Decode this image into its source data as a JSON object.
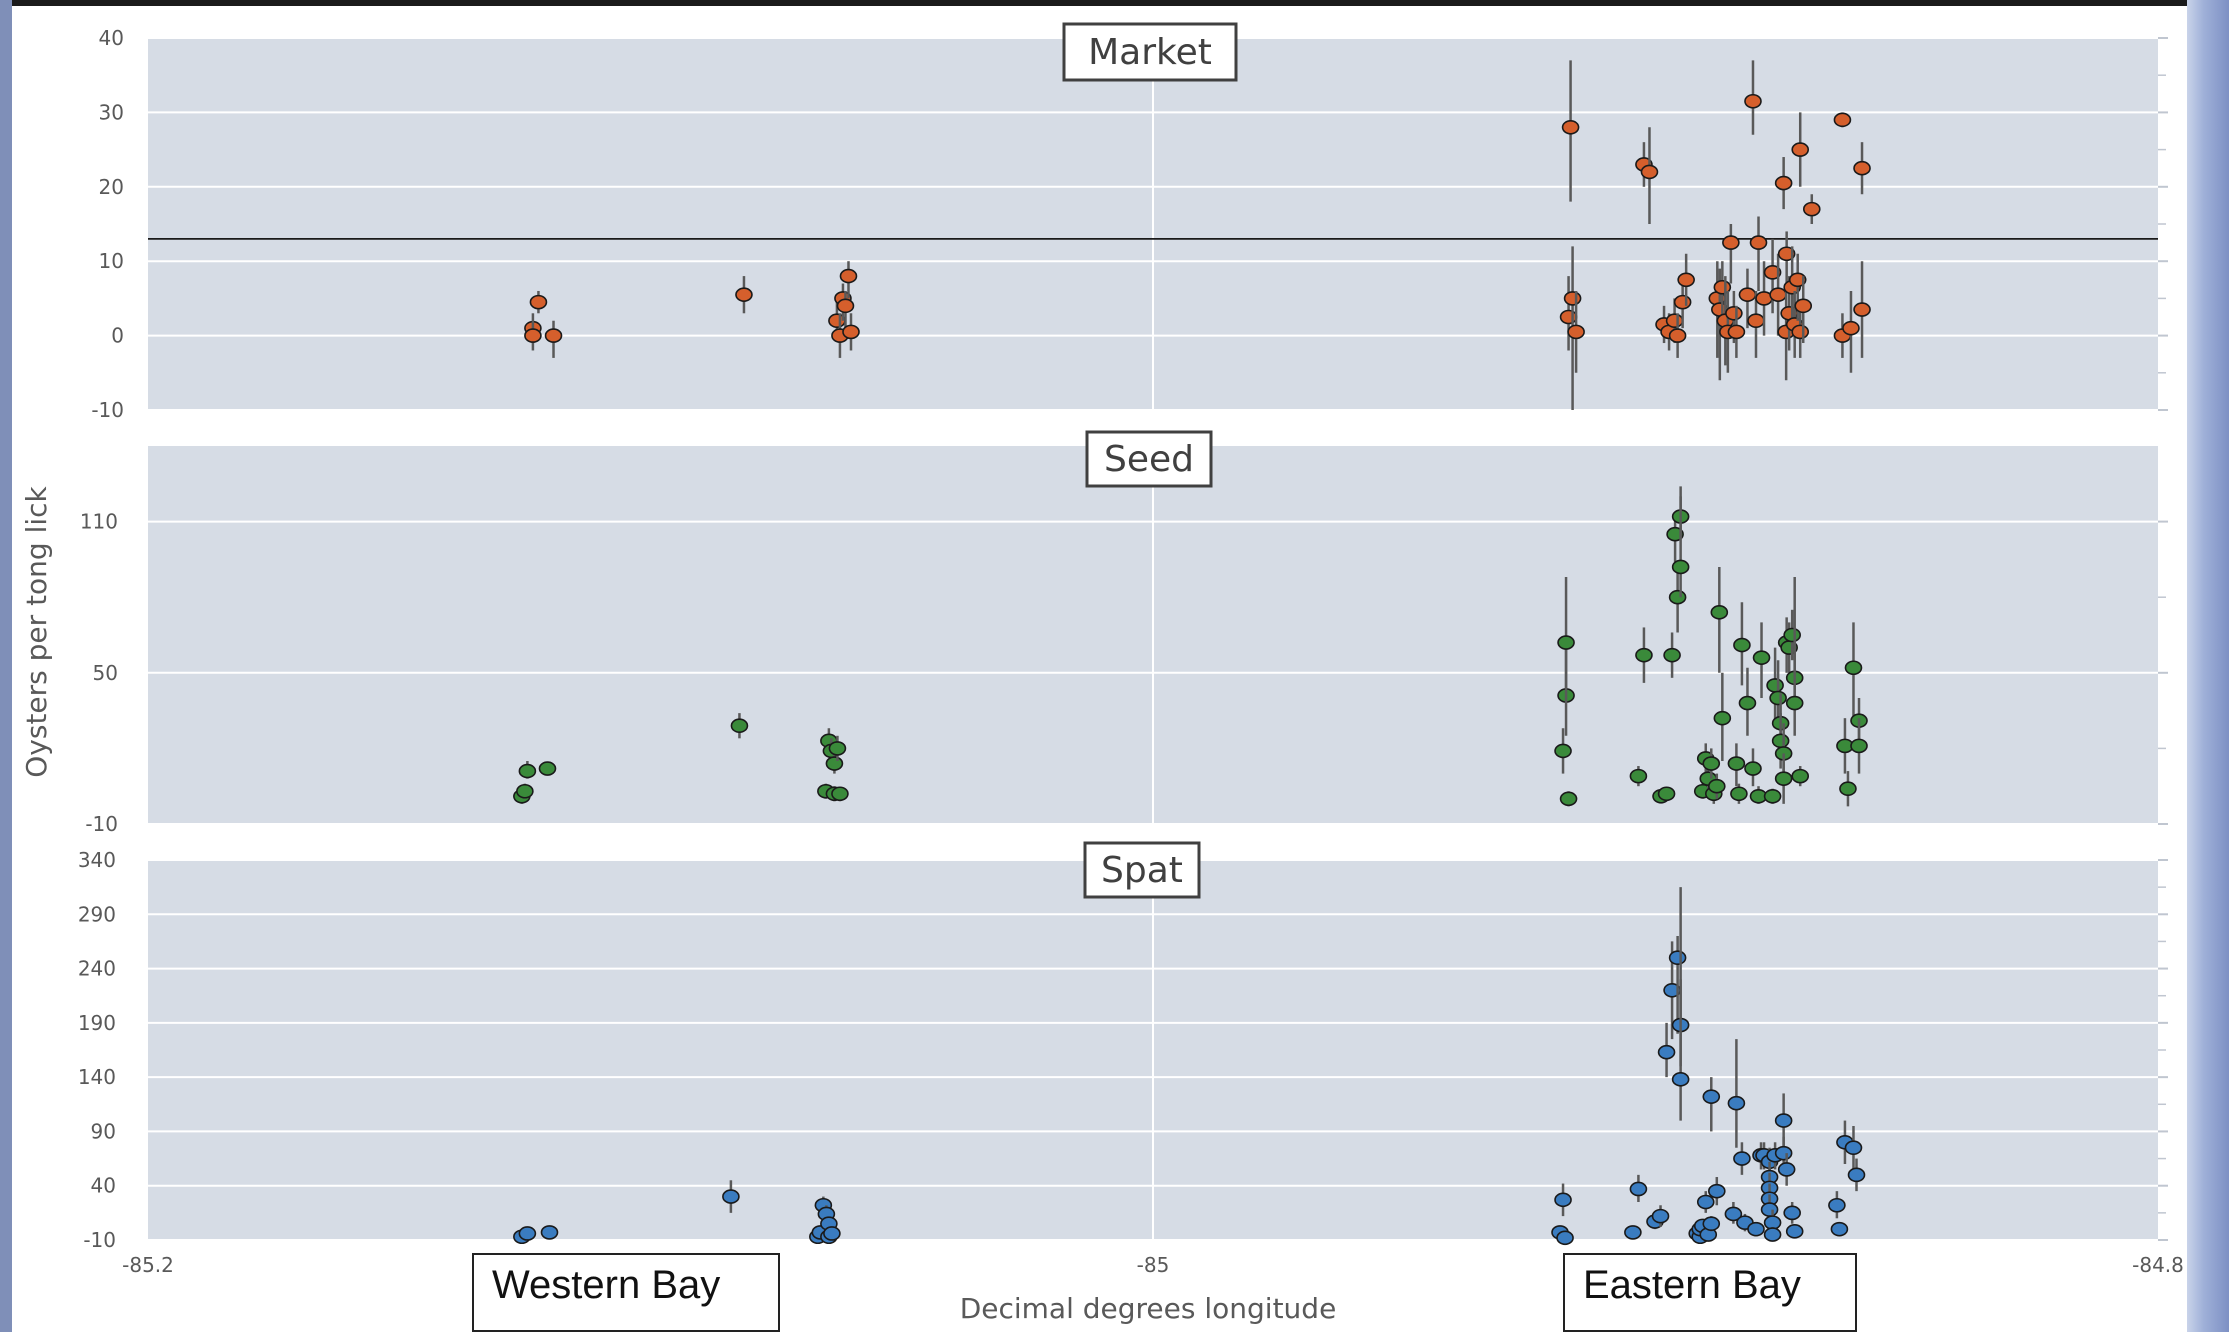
{
  "ylabel": "Oysters per tong lick",
  "xlabel": "Decimal degrees longitude",
  "x_ticks": [
    "-85.2",
    "-85",
    "-84.8"
  ],
  "bay_labels": {
    "west": "Western Bay",
    "east": "Eastern Bay"
  },
  "colors": {
    "plot_bg": "#d6dce5",
    "grid": "#ffffff",
    "whisker": "#595959"
  },
  "chart_data": [
    {
      "type": "scatter",
      "title": "Market",
      "xlim": [
        -85.2,
        -84.8
      ],
      "ylim": [
        -10,
        40
      ],
      "yticks": [
        -10,
        0,
        10,
        20,
        30,
        40
      ],
      "hline": 13,
      "marker_color": "#d55f2c",
      "points": [
        {
          "x": -85.1234,
          "y": 1,
          "lo": -1,
          "hi": 3
        },
        {
          "x": -85.1234,
          "y": 0,
          "lo": -2,
          "hi": 2
        },
        {
          "x": -85.1223,
          "y": 4.5,
          "lo": 3,
          "hi": 6
        },
        {
          "x": -85.1193,
          "y": 0,
          "lo": -3,
          "hi": 2
        },
        {
          "x": -85.0814,
          "y": 5.5,
          "lo": 3,
          "hi": 8
        },
        {
          "x": -85.0629,
          "y": 2,
          "lo": 0,
          "hi": 5
        },
        {
          "x": -85.0623,
          "y": 0,
          "lo": -3,
          "hi": 3
        },
        {
          "x": -85.0617,
          "y": 5,
          "lo": 2,
          "hi": 7
        },
        {
          "x": -85.0612,
          "y": 4,
          "lo": 1,
          "hi": 6
        },
        {
          "x": -85.0606,
          "y": 8,
          "lo": 5,
          "hi": 10
        },
        {
          "x": -85.0601,
          "y": 0.5,
          "lo": -2,
          "hi": 3
        },
        {
          "x": -84.9169,
          "y": 28,
          "lo": 18,
          "hi": 37
        },
        {
          "x": -84.9173,
          "y": 2.5,
          "lo": -2,
          "hi": 8
        },
        {
          "x": -84.9165,
          "y": 5,
          "lo": -10,
          "hi": 12
        },
        {
          "x": -84.9158,
          "y": 0.5,
          "lo": -5,
          "hi": 6
        },
        {
          "x": -84.9023,
          "y": 23,
          "lo": 20,
          "hi": 26
        },
        {
          "x": -84.9012,
          "y": 22,
          "lo": 15,
          "hi": 28
        },
        {
          "x": -84.8983,
          "y": 1.5,
          "lo": -1,
          "hi": 4
        },
        {
          "x": -84.8973,
          "y": 0.5,
          "lo": -2,
          "hi": 3
        },
        {
          "x": -84.8962,
          "y": 2,
          "lo": -1,
          "hi": 5
        },
        {
          "x": -84.8956,
          "y": 0,
          "lo": -3,
          "hi": 3
        },
        {
          "x": -84.8946,
          "y": 4.5,
          "lo": 1,
          "hi": 8
        },
        {
          "x": -84.8939,
          "y": 7.5,
          "lo": 4,
          "hi": 11
        },
        {
          "x": -84.8877,
          "y": 5,
          "lo": -3,
          "hi": 10
        },
        {
          "x": -84.8872,
          "y": 3.5,
          "lo": -6,
          "hi": 9
        },
        {
          "x": -84.8867,
          "y": 6.5,
          "lo": 2,
          "hi": 10
        },
        {
          "x": -84.8861,
          "y": 2,
          "lo": -4,
          "hi": 8
        },
        {
          "x": -84.8856,
          "y": 0.5,
          "lo": -5,
          "hi": 6
        },
        {
          "x": -84.885,
          "y": 12.5,
          "lo": 7,
          "hi": 15
        },
        {
          "x": -84.8844,
          "y": 3,
          "lo": -1,
          "hi": 6
        },
        {
          "x": -84.8839,
          "y": 0.5,
          "lo": -3,
          "hi": 4
        },
        {
          "x": -84.8817,
          "y": 5.5,
          "lo": 1,
          "hi": 9
        },
        {
          "x": -84.8806,
          "y": 31.5,
          "lo": 27,
          "hi": 37
        },
        {
          "x": -84.88,
          "y": 2,
          "lo": -3,
          "hi": 6
        },
        {
          "x": -84.8795,
          "y": 12.5,
          "lo": 6,
          "hi": 16
        },
        {
          "x": -84.8784,
          "y": 5,
          "lo": 0,
          "hi": 10
        },
        {
          "x": -84.8767,
          "y": 8.5,
          "lo": 3,
          "hi": 13
        },
        {
          "x": -84.8756,
          "y": 5.5,
          "lo": 0,
          "hi": 11
        },
        {
          "x": -84.8745,
          "y": 20.5,
          "lo": 17,
          "hi": 24
        },
        {
          "x": -84.874,
          "y": 0.5,
          "lo": -6,
          "hi": 7
        },
        {
          "x": -84.8734,
          "y": 3,
          "lo": -2,
          "hi": 8
        },
        {
          "x": -84.8739,
          "y": 11,
          "lo": 6,
          "hi": 14
        },
        {
          "x": -84.8728,
          "y": 6.5,
          "lo": 1,
          "hi": 12
        },
        {
          "x": -84.8723,
          "y": 1.5,
          "lo": -3,
          "hi": 6
        },
        {
          "x": -84.8717,
          "y": 7.5,
          "lo": 2,
          "hi": 11
        },
        {
          "x": -84.8712,
          "y": 25,
          "lo": 20,
          "hi": 30
        },
        {
          "x": -84.8712,
          "y": 0.5,
          "lo": -3,
          "hi": 4
        },
        {
          "x": -84.8706,
          "y": 4,
          "lo": -1,
          "hi": 8
        },
        {
          "x": -84.8689,
          "y": 17,
          "lo": 15,
          "hi": 19
        },
        {
          "x": -84.8628,
          "y": 29,
          "lo": 28,
          "hi": 30
        },
        {
          "x": -84.8628,
          "y": 0,
          "lo": -3,
          "hi": 3
        },
        {
          "x": -84.8611,
          "y": 1,
          "lo": -5,
          "hi": 6
        },
        {
          "x": -84.8589,
          "y": 22.5,
          "lo": 19,
          "hi": 26
        },
        {
          "x": -84.8589,
          "y": 3.5,
          "lo": -3,
          "hi": 10
        }
      ]
    },
    {
      "type": "scatter",
      "title": "Seed",
      "xlim": [
        -85.2,
        -84.8
      ],
      "ylim": [
        -10,
        140
      ],
      "yticks": [
        -10,
        50,
        110
      ],
      "marker_color": "#3a8a3a",
      "points": [
        {
          "x": -85.1256,
          "y": 1,
          "lo": -2,
          "hi": 4
        },
        {
          "x": -85.125,
          "y": 3,
          "lo": 0,
          "hi": 6
        },
        {
          "x": -85.1245,
          "y": 11,
          "lo": 8,
          "hi": 15
        },
        {
          "x": -85.1205,
          "y": 12,
          "lo": 10,
          "hi": 14
        },
        {
          "x": -85.0823,
          "y": 29,
          "lo": 24,
          "hi": 34
        },
        {
          "x": -85.0651,
          "y": 3,
          "lo": 0,
          "hi": 6
        },
        {
          "x": -85.0645,
          "y": 23,
          "lo": 18,
          "hi": 28
        },
        {
          "x": -85.064,
          "y": 19,
          "lo": 15,
          "hi": 24
        },
        {
          "x": -85.0634,
          "y": 14,
          "lo": 10,
          "hi": 18
        },
        {
          "x": -85.0634,
          "y": 2,
          "lo": -1,
          "hi": 5
        },
        {
          "x": -85.0628,
          "y": 20,
          "lo": 15,
          "hi": 25
        },
        {
          "x": -85.0623,
          "y": 2,
          "lo": -1,
          "hi": 4
        },
        {
          "x": -84.9184,
          "y": 19,
          "lo": 10,
          "hi": 28
        },
        {
          "x": -84.9178,
          "y": 41,
          "lo": 25,
          "hi": 60
        },
        {
          "x": -84.9178,
          "y": 62,
          "lo": 38,
          "hi": 88
        },
        {
          "x": -84.9173,
          "y": 0,
          "lo": -3,
          "hi": 3
        },
        {
          "x": -84.9034,
          "y": 9,
          "lo": 5,
          "hi": 13
        },
        {
          "x": -84.9023,
          "y": 57,
          "lo": 46,
          "hi": 68
        },
        {
          "x": -84.8989,
          "y": 1,
          "lo": -1,
          "hi": 3
        },
        {
          "x": -84.8978,
          "y": 2,
          "lo": 0,
          "hi": 4
        },
        {
          "x": -84.8967,
          "y": 57,
          "lo": 48,
          "hi": 66
        },
        {
          "x": -84.8961,
          "y": 105,
          "lo": 94,
          "hi": 113
        },
        {
          "x": -84.8956,
          "y": 80,
          "lo": 66,
          "hi": 94
        },
        {
          "x": -84.895,
          "y": 112,
          "lo": 103,
          "hi": 120
        },
        {
          "x": -84.895,
          "y": 92,
          "lo": 80,
          "hi": 124
        },
        {
          "x": -84.8906,
          "y": 3,
          "lo": 0,
          "hi": 7
        },
        {
          "x": -84.89,
          "y": 16,
          "lo": 10,
          "hi": 22
        },
        {
          "x": -84.8895,
          "y": 8,
          "lo": 3,
          "hi": 14
        },
        {
          "x": -84.8889,
          "y": 14,
          "lo": 8,
          "hi": 20
        },
        {
          "x": -84.8884,
          "y": 2,
          "lo": -2,
          "hi": 6
        },
        {
          "x": -84.8878,
          "y": 5,
          "lo": 0,
          "hi": 10
        },
        {
          "x": -84.8873,
          "y": 74,
          "lo": 50,
          "hi": 92
        },
        {
          "x": -84.8867,
          "y": 32,
          "lo": 15,
          "hi": 50
        },
        {
          "x": -84.8839,
          "y": 14,
          "lo": 5,
          "hi": 22
        },
        {
          "x": -84.8834,
          "y": 2,
          "lo": -2,
          "hi": 6
        },
        {
          "x": -84.8828,
          "y": 61,
          "lo": 45,
          "hi": 78
        },
        {
          "x": -84.8817,
          "y": 38,
          "lo": 25,
          "hi": 52
        },
        {
          "x": -84.8806,
          "y": 12,
          "lo": 5,
          "hi": 20
        },
        {
          "x": -84.8795,
          "y": 1,
          "lo": -2,
          "hi": 5
        },
        {
          "x": -84.8789,
          "y": 56,
          "lo": 40,
          "hi": 70
        },
        {
          "x": -84.8767,
          "y": 1,
          "lo": -2,
          "hi": 4
        },
        {
          "x": -84.8762,
          "y": 45,
          "lo": 30,
          "hi": 60
        },
        {
          "x": -84.8756,
          "y": 40,
          "lo": 28,
          "hi": 55
        },
        {
          "x": -84.8751,
          "y": 30,
          "lo": 18,
          "hi": 42
        },
        {
          "x": -84.8751,
          "y": 23,
          "lo": 12,
          "hi": 34
        },
        {
          "x": -84.8745,
          "y": 18,
          "lo": 5,
          "hi": 30
        },
        {
          "x": -84.8745,
          "y": 8,
          "lo": -2,
          "hi": 18
        },
        {
          "x": -84.8739,
          "y": 62,
          "lo": 50,
          "hi": 72
        },
        {
          "x": -84.8734,
          "y": 60,
          "lo": 50,
          "hi": 70
        },
        {
          "x": -84.8728,
          "y": 65,
          "lo": 55,
          "hi": 75
        },
        {
          "x": -84.8723,
          "y": 48,
          "lo": 35,
          "hi": 88
        },
        {
          "x": -84.8723,
          "y": 38,
          "lo": 25,
          "hi": 60
        },
        {
          "x": -84.8712,
          "y": 9,
          "lo": 5,
          "hi": 13
        },
        {
          "x": -84.8623,
          "y": 21,
          "lo": 10,
          "hi": 32
        },
        {
          "x": -84.8617,
          "y": 4,
          "lo": -3,
          "hi": 11
        },
        {
          "x": -84.8606,
          "y": 52,
          "lo": 30,
          "hi": 70
        },
        {
          "x": -84.8595,
          "y": 31,
          "lo": 22,
          "hi": 40
        },
        {
          "x": -84.8595,
          "y": 21,
          "lo": 10,
          "hi": 32
        }
      ]
    },
    {
      "type": "scatter",
      "title": "Spat",
      "xlim": [
        -85.2,
        -84.8
      ],
      "ylim": [
        -10,
        340
      ],
      "yticks": [
        -10,
        40,
        90,
        140,
        190,
        240,
        290,
        340
      ],
      "marker_color": "#3a7cc0",
      "points": [
        {
          "x": -85.1256,
          "y": -7,
          "lo": -10,
          "hi": -3
        },
        {
          "x": -85.1245,
          "y": -4,
          "lo": -8,
          "hi": 0
        },
        {
          "x": -85.1201,
          "y": -3,
          "lo": -6,
          "hi": 0
        },
        {
          "x": -85.084,
          "y": 30,
          "lo": 15,
          "hi": 45
        },
        {
          "x": -85.0667,
          "y": -7,
          "lo": -10,
          "hi": -3
        },
        {
          "x": -85.0662,
          "y": -3,
          "lo": -6,
          "hi": 0
        },
        {
          "x": -85.0656,
          "y": 22,
          "lo": 15,
          "hi": 30
        },
        {
          "x": -85.065,
          "y": 14,
          "lo": 6,
          "hi": 22
        },
        {
          "x": -85.0645,
          "y": 5,
          "lo": -1,
          "hi": 10
        },
        {
          "x": -85.0645,
          "y": -7,
          "lo": -10,
          "hi": -3
        },
        {
          "x": -85.0639,
          "y": -4,
          "lo": -8,
          "hi": 0
        },
        {
          "x": -84.919,
          "y": -3,
          "lo": -8,
          "hi": 2
        },
        {
          "x": -84.918,
          "y": -8,
          "lo": -10,
          "hi": -5
        },
        {
          "x": -84.9184,
          "y": 27,
          "lo": 12,
          "hi": 42
        },
        {
          "x": -84.9045,
          "y": -3,
          "lo": -7,
          "hi": 1
        },
        {
          "x": -84.9034,
          "y": 37,
          "lo": 25,
          "hi": 50
        },
        {
          "x": -84.9001,
          "y": 7,
          "lo": 0,
          "hi": 14
        },
        {
          "x": -84.899,
          "y": 12,
          "lo": 2,
          "hi": 22
        },
        {
          "x": -84.8978,
          "y": 163,
          "lo": 140,
          "hi": 190
        },
        {
          "x": -84.8967,
          "y": 220,
          "lo": 175,
          "hi": 265
        },
        {
          "x": -84.8956,
          "y": 250,
          "lo": 180,
          "hi": 270
        },
        {
          "x": -84.895,
          "y": 188,
          "lo": 150,
          "hi": 230
        },
        {
          "x": -84.895,
          "y": 138,
          "lo": 100,
          "hi": 315
        },
        {
          "x": -84.8917,
          "y": -4,
          "lo": -8,
          "hi": 0
        },
        {
          "x": -84.8911,
          "y": -7,
          "lo": -10,
          "hi": -3
        },
        {
          "x": -84.8911,
          "y": 0,
          "lo": -4,
          "hi": 4
        },
        {
          "x": -84.8906,
          "y": 3,
          "lo": -2,
          "hi": 8
        },
        {
          "x": -84.89,
          "y": 25,
          "lo": 15,
          "hi": 35
        },
        {
          "x": -84.8895,
          "y": -5,
          "lo": -9,
          "hi": -1
        },
        {
          "x": -84.8889,
          "y": 5,
          "lo": -2,
          "hi": 12
        },
        {
          "x": -84.8889,
          "y": 122,
          "lo": 90,
          "hi": 140
        },
        {
          "x": -84.8878,
          "y": 35,
          "lo": 22,
          "hi": 48
        },
        {
          "x": -84.8845,
          "y": 14,
          "lo": 5,
          "hi": 25
        },
        {
          "x": -84.8839,
          "y": 116,
          "lo": 75,
          "hi": 175
        },
        {
          "x": -84.8828,
          "y": 65,
          "lo": 50,
          "hi": 80
        },
        {
          "x": -84.8822,
          "y": 6,
          "lo": -2,
          "hi": 14
        },
        {
          "x": -84.88,
          "y": 0,
          "lo": -5,
          "hi": 5
        },
        {
          "x": -84.879,
          "y": 68,
          "lo": 55,
          "hi": 80
        },
        {
          "x": -84.8784,
          "y": 68,
          "lo": 55,
          "hi": 80
        },
        {
          "x": -84.8773,
          "y": 62,
          "lo": 50,
          "hi": 75
        },
        {
          "x": -84.8773,
          "y": 48,
          "lo": 35,
          "hi": 62
        },
        {
          "x": -84.8773,
          "y": 38,
          "lo": 25,
          "hi": 52
        },
        {
          "x": -84.8773,
          "y": 28,
          "lo": 15,
          "hi": 42
        },
        {
          "x": -84.8773,
          "y": 18,
          "lo": 5,
          "hi": 32
        },
        {
          "x": -84.8767,
          "y": 6,
          "lo": -5,
          "hi": 18
        },
        {
          "x": -84.8767,
          "y": -5,
          "lo": -10,
          "hi": 2
        },
        {
          "x": -84.8762,
          "y": 68,
          "lo": 55,
          "hi": 80
        },
        {
          "x": -84.8745,
          "y": 100,
          "lo": 75,
          "hi": 125
        },
        {
          "x": -84.8745,
          "y": 70,
          "lo": 55,
          "hi": 85
        },
        {
          "x": -84.8739,
          "y": 55,
          "lo": 40,
          "hi": 70
        },
        {
          "x": -84.8728,
          "y": 15,
          "lo": 5,
          "hi": 25
        },
        {
          "x": -84.8723,
          "y": -2,
          "lo": -8,
          "hi": 4
        },
        {
          "x": -84.8639,
          "y": 22,
          "lo": 10,
          "hi": 35
        },
        {
          "x": -84.8634,
          "y": 0,
          "lo": -5,
          "hi": 5
        },
        {
          "x": -84.8623,
          "y": 80,
          "lo": 60,
          "hi": 100
        },
        {
          "x": -84.8606,
          "y": 75,
          "lo": 55,
          "hi": 95
        },
        {
          "x": -84.86,
          "y": 50,
          "lo": 35,
          "hi": 65
        }
      ]
    }
  ]
}
